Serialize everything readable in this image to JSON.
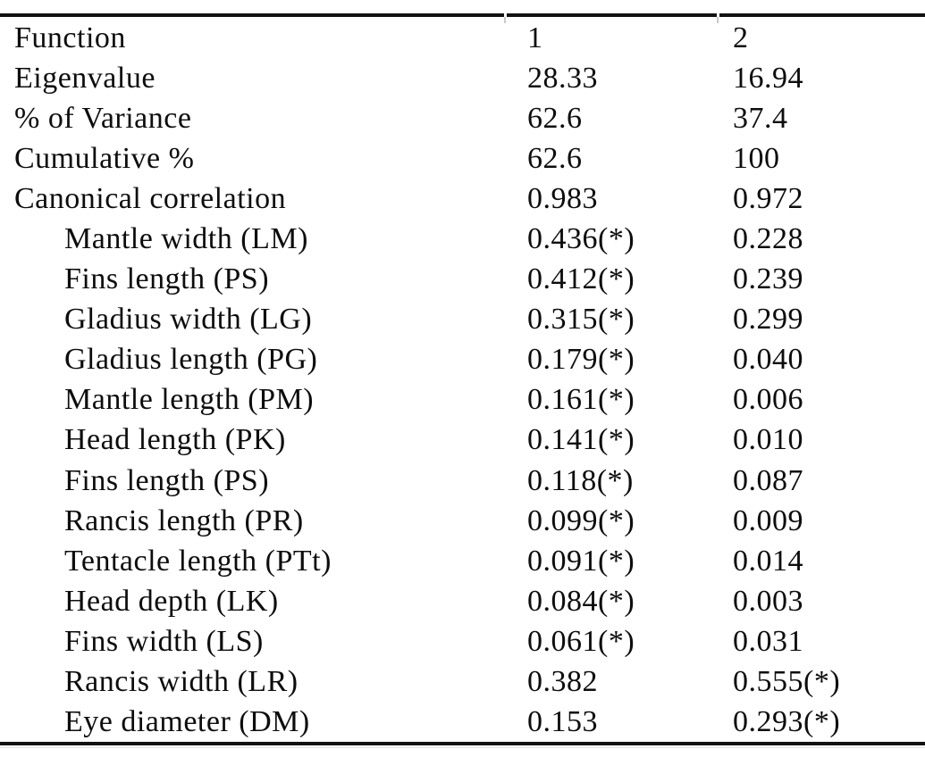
{
  "colors": {
    "background": "#ffffff",
    "text": "#0d0d0d",
    "rule": "#121212"
  },
  "table": {
    "header": {
      "label": "Function",
      "col1": "1",
      "col2": "2"
    },
    "rows": [
      {
        "label": "Eigenvalue",
        "col1": "28.33",
        "col2": "16.94"
      },
      {
        "label": "% of Variance",
        "col1": "62.6",
        "col2": "37.4"
      },
      {
        "label": "Cumulative %",
        "col1": "62.6",
        "col2": "100"
      },
      {
        "label": "Canonical correlation",
        "col1": "0.983",
        "col2": "0.972"
      },
      {
        "label": "Mantle width (LM)",
        "col1": "0.436(*)",
        "col2": "0.228"
      },
      {
        "label": "Fins length (PS)",
        "col1": "0.412(*)",
        "col2": "0.239"
      },
      {
        "label": "Gladius width (LG)",
        "col1": "0.315(*)",
        "col2": "0.299"
      },
      {
        "label": "Gladius length (PG)",
        "col1": "0.179(*)",
        "col2": "0.040"
      },
      {
        "label": "Mantle length (PM)",
        "col1": "0.161(*)",
        "col2": "0.006"
      },
      {
        "label": "Head length (PK)",
        "col1": "0.141(*)",
        "col2": "0.010"
      },
      {
        "label": "Fins length (PS)",
        "col1": "0.118(*)",
        "col2": "0.087"
      },
      {
        "label": "Rancis length (PR)",
        "col1": "0.099(*)",
        "col2": "0.009"
      },
      {
        "label": "Tentacle length (PTt)",
        "col1": "0.091(*)",
        "col2": "0.014"
      },
      {
        "label": "Head depth (LK)",
        "col1": "0.084(*)",
        "col2": "0.003"
      },
      {
        "label": "Fins width (LS)",
        "col1": "0.061(*)",
        "col2": "0.031"
      },
      {
        "label": "Rancis width (LR)",
        "col1": "0.382",
        "col2": "0.555(*)"
      },
      {
        "label": "Eye diameter (DM)",
        "col1": "0.153",
        "col2": "0.293(*)"
      }
    ]
  }
}
